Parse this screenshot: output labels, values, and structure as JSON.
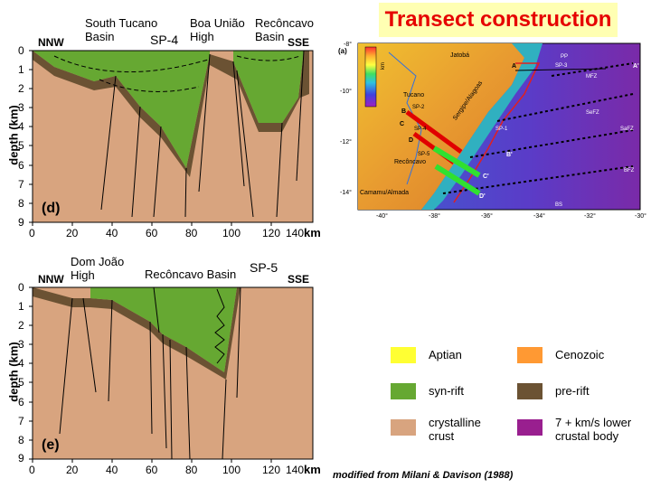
{
  "title": "Transect construction",
  "section_d": {
    "basin_labels": [
      {
        "text": "South Tucano\nBasin"
      },
      {
        "text": "Boa União\nHigh"
      },
      {
        "text": "Recôncavo\nBasin"
      }
    ],
    "sp_label": "SP-4",
    "left_dir": "NNW",
    "right_dir": "SSE",
    "ylabel": "depth (km)",
    "xunit": "km",
    "panel_letter": "(d)",
    "yticks": [
      "0",
      "1",
      "2",
      "3",
      "4",
      "5",
      "6",
      "7",
      "8",
      "9"
    ],
    "xticks": [
      "0",
      "20",
      "40",
      "60",
      "80",
      "100",
      "120",
      "140"
    ]
  },
  "section_e": {
    "basin_labels": [
      {
        "text": "Dom João\nHigh"
      },
      {
        "text": "Recôncavo Basin"
      }
    ],
    "sp_label": "SP-5",
    "left_dir": "NNW",
    "right_dir": "SSE",
    "ylabel": "depth (km)",
    "xunit": "km",
    "panel_letter": "(e)",
    "yticks": [
      "0",
      "1",
      "2",
      "3",
      "4",
      "5",
      "6",
      "7",
      "8",
      "9"
    ],
    "xticks": [
      "0",
      "20",
      "40",
      "60",
      "80",
      "100",
      "120",
      "140"
    ]
  },
  "map": {
    "panel_letter": "(a)",
    "colorbar_unit": "km",
    "colorbar_ticks": [
      "1",
      "0.5",
      "0",
      "-0.5",
      "-1",
      "-1.5",
      "-2",
      "-2.5",
      "-3",
      "-3.5",
      "-4",
      "-4.5",
      "-5",
      "-5.5"
    ],
    "lon_ticks": [
      "-40°",
      "-38°",
      "-36°",
      "-34°",
      "-32°",
      "-30°"
    ],
    "lat_ticks": [
      "-8°",
      "-10°",
      "-12°",
      "-14°"
    ],
    "place_labels": [
      "Jatobá",
      "Tucano",
      "Recôncavo",
      "Camamu/Almada",
      "Sergipe/Alagoas",
      "SP-1",
      "SP-2",
      "SP-3",
      "SP-4",
      "SP-5",
      "MFZ",
      "SeFZ",
      "SaFZ",
      "BFZ",
      "BS",
      "PP"
    ],
    "profile_letters": [
      "A",
      "A'",
      "B",
      "B'",
      "C",
      "C'",
      "D",
      "D'"
    ]
  },
  "legend": [
    {
      "label": "Aptian",
      "color": "#ffff33"
    },
    {
      "label": "Cenozoic",
      "color": "#ff9933"
    },
    {
      "label": "syn-rift",
      "color": "#66a832"
    },
    {
      "label": "pre-rift",
      "color": "#6b5233"
    },
    {
      "label": "crystalline\ncrust",
      "color": "#d8a47f"
    },
    {
      "label": "7 + km/s lower\ncrustal body",
      "color": "#991f8f"
    }
  ],
  "credit": "modified from Milani & Davison (1988)",
  "colors": {
    "crust": "#d8a47f",
    "synrift": "#66a832",
    "prerift": "#6b5233",
    "title_bg": "#ffffb3",
    "title_fg": "#e60000"
  }
}
